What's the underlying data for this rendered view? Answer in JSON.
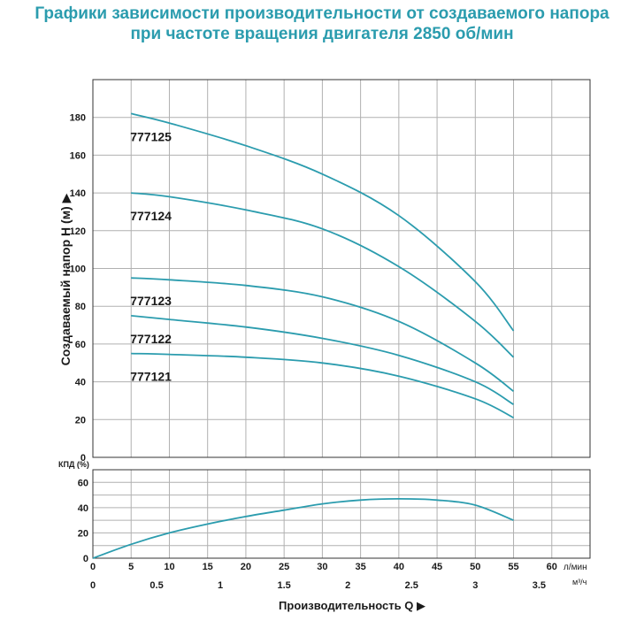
{
  "title_line1": "Графики зависимости производительности от создаваемого напора",
  "title_line2": "при частоте вращения двигателя 2850 об/мин",
  "colors": {
    "title": "#2b9cae",
    "curve": "#2b9cae",
    "grid": "#b0b0b0",
    "axis": "#333333"
  },
  "chart_data": [
    {
      "type": "line",
      "ylabel": "Создаваемый напор H (м) ▶",
      "ylim": [
        0,
        200
      ],
      "yticks": [
        0,
        20,
        40,
        60,
        80,
        100,
        120,
        140,
        160,
        180
      ],
      "xlim": [
        0,
        65
      ],
      "grid": true,
      "series": [
        {
          "name": "777125",
          "x": [
            5,
            10,
            20,
            30,
            40,
            50,
            55
          ],
          "y": [
            182,
            177,
            165,
            150,
            128,
            93,
            67
          ]
        },
        {
          "name": "777124",
          "x": [
            5,
            10,
            20,
            30,
            40,
            50,
            55
          ],
          "y": [
            140,
            138,
            131,
            121,
            101,
            72,
            53
          ]
        },
        {
          "name": "777123",
          "x": [
            5,
            10,
            20,
            30,
            40,
            50,
            55
          ],
          "y": [
            95,
            94,
            91,
            85,
            72,
            50,
            35
          ]
        },
        {
          "name": "777122",
          "x": [
            5,
            10,
            20,
            30,
            40,
            50,
            55
          ],
          "y": [
            75,
            73,
            69,
            63,
            54,
            40,
            28
          ]
        },
        {
          "name": "777121",
          "x": [
            5,
            10,
            20,
            30,
            40,
            50,
            55
          ],
          "y": [
            55,
            54.5,
            53,
            50,
            43,
            31,
            21
          ]
        }
      ]
    },
    {
      "type": "line",
      "ylabel": "КПД (%)",
      "ylim": [
        0,
        70
      ],
      "yticks": [
        0,
        20,
        40,
        60
      ],
      "xlabel": "Производительность Q ▶",
      "xticks": [
        0,
        5,
        10,
        15,
        20,
        25,
        30,
        35,
        40,
        45,
        50,
        55,
        60
      ],
      "x_unit": "л/мин",
      "x2ticks": [
        "0",
        "0.5",
        "1",
        "1.5",
        "2",
        "2.5",
        "3",
        "3.5"
      ],
      "x2_values": [
        0,
        0.5,
        1,
        1.5,
        2,
        2.5,
        3,
        3.5
      ],
      "x2_unit": "м³/ч",
      "grid": true,
      "series": [
        {
          "x": [
            0,
            5,
            10,
            15,
            20,
            25,
            30,
            35,
            40,
            45,
            50,
            55
          ],
          "y": [
            0,
            11,
            20,
            27,
            33,
            38,
            43,
            46,
            47,
            46,
            42,
            30
          ]
        }
      ]
    }
  ]
}
